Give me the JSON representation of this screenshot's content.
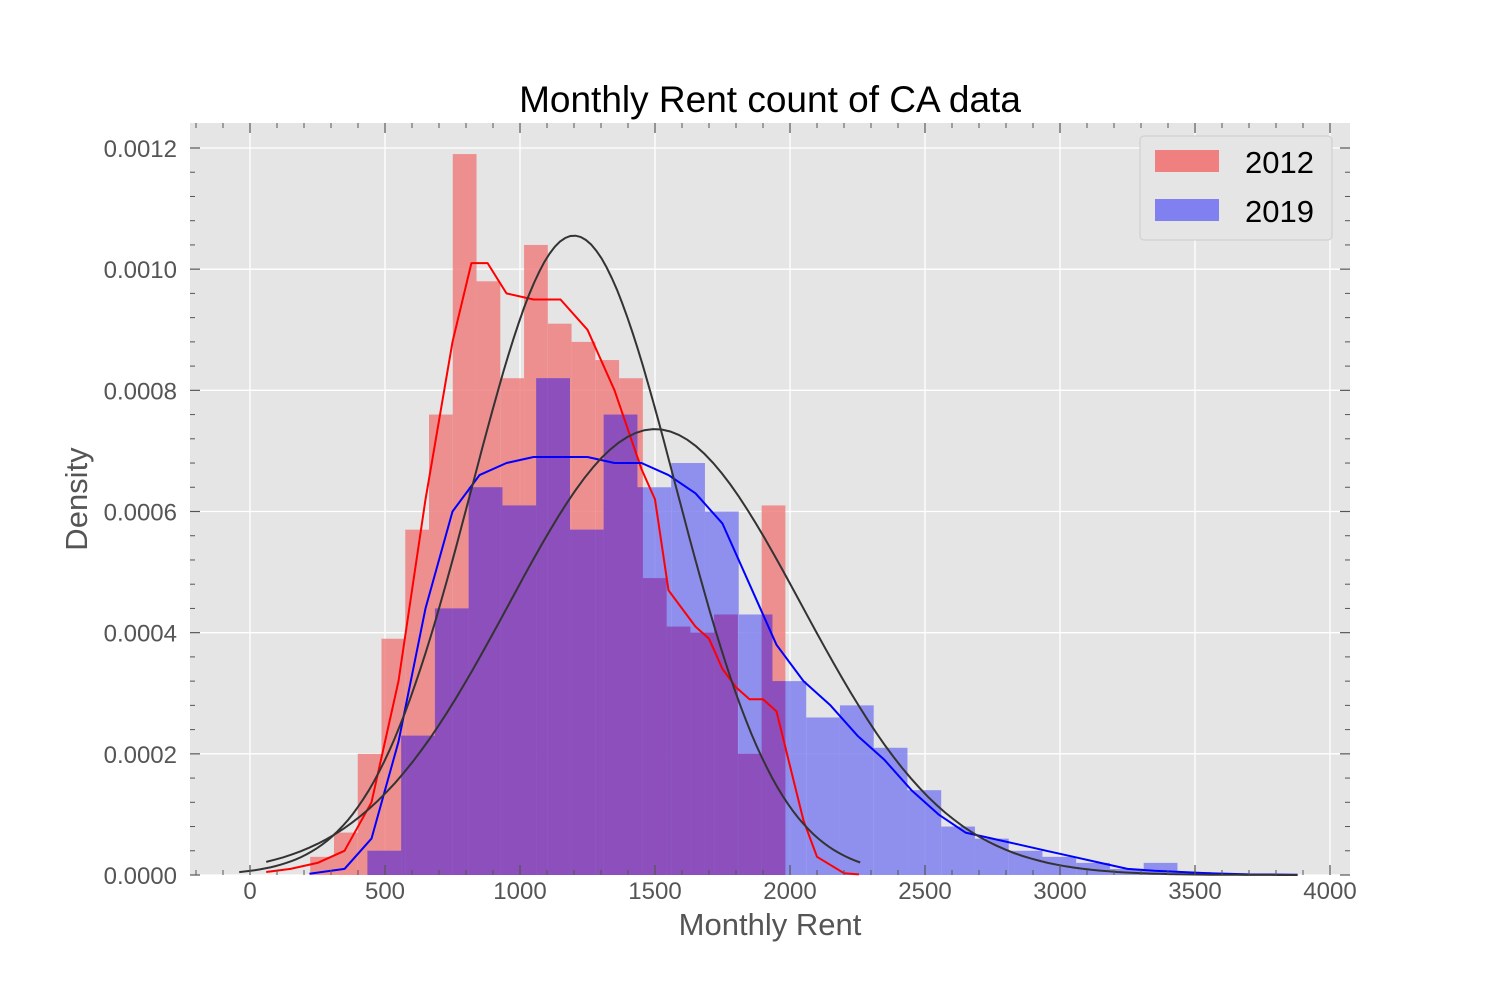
{
  "chart_data": {
    "type": "histogram",
    "title": "Monthly Rent count of CA  data",
    "xlabel": "Monthly Rent",
    "ylabel": "Density",
    "xlim": [
      -200,
      4050
    ],
    "ylim": [
      0,
      0.00124
    ],
    "xticks": [
      0,
      500,
      1000,
      1500,
      2000,
      2500,
      3000,
      3500,
      4000
    ],
    "xtick_labels": [
      "0",
      "500",
      "1000",
      "1500",
      "2000",
      "2500",
      "3000",
      "3500",
      "4000"
    ],
    "yticks": [
      0,
      0.0002,
      0.0004,
      0.0006,
      0.0008,
      0.001,
      0.0012
    ],
    "ytick_labels": [
      "0.0000",
      "0.0002",
      "0.0004",
      "0.0006",
      "0.0008",
      "0.0010",
      "0.0012"
    ],
    "grid": true,
    "legend_position": "upper right",
    "series": [
      {
        "name": "2012",
        "color": "#f08080",
        "bins": [
          [
            223,
            311,
            3e-05
          ],
          [
            311,
            399,
            7e-05
          ],
          [
            399,
            487,
            0.0002
          ],
          [
            487,
            575,
            0.00039
          ],
          [
            575,
            663,
            0.00057
          ],
          [
            663,
            751,
            0.00076
          ],
          [
            751,
            839,
            0.00119
          ],
          [
            839,
            927,
            0.00098
          ],
          [
            927,
            1015,
            0.00082
          ],
          [
            1015,
            1103,
            0.00104
          ],
          [
            1103,
            1191,
            0.00091
          ],
          [
            1191,
            1279,
            0.00088
          ],
          [
            1279,
            1367,
            0.00085
          ],
          [
            1367,
            1455,
            0.00082
          ],
          [
            1455,
            1543,
            0.00049
          ],
          [
            1543,
            1631,
            0.00041
          ],
          [
            1631,
            1719,
            0.0004
          ],
          [
            1719,
            1807,
            0.00043
          ],
          [
            1807,
            1895,
            0.0002
          ],
          [
            1895,
            1983,
            0.00061
          ]
        ],
        "kde": [
          [
            60,
            5e-06
          ],
          [
            150,
            1e-05
          ],
          [
            250,
            2e-05
          ],
          [
            350,
            4e-05
          ],
          [
            450,
            0.00012
          ],
          [
            550,
            0.00032
          ],
          [
            650,
            0.00062
          ],
          [
            750,
            0.00088
          ],
          [
            820,
            0.00101
          ],
          [
            880,
            0.00101
          ],
          [
            950,
            0.00096
          ],
          [
            1050,
            0.00095
          ],
          [
            1150,
            0.00095
          ],
          [
            1250,
            0.0009
          ],
          [
            1350,
            0.0008
          ],
          [
            1450,
            0.00067
          ],
          [
            1500,
            0.00062
          ],
          [
            1550,
            0.00047
          ],
          [
            1650,
            0.00041
          ],
          [
            1700,
            0.00039
          ],
          [
            1750,
            0.00034
          ],
          [
            1800,
            0.00031
          ],
          [
            1850,
            0.00029
          ],
          [
            1900,
            0.00029
          ],
          [
            1950,
            0.00027
          ],
          [
            2000,
            0.00018
          ],
          [
            2050,
            9e-05
          ],
          [
            2100,
            3e-05
          ],
          [
            2200,
            3e-06
          ],
          [
            2255,
            1e-06
          ]
        ]
      },
      {
        "name": "2019",
        "color": "#8080f0",
        "bins": [
          [
            435,
            560,
            4e-05
          ],
          [
            560,
            685,
            0.00023
          ],
          [
            685,
            810,
            0.00044
          ],
          [
            810,
            935,
            0.00064
          ],
          [
            935,
            1060,
            0.00061
          ],
          [
            1060,
            1185,
            0.00082
          ],
          [
            1185,
            1310,
            0.00057
          ],
          [
            1310,
            1435,
            0.00076
          ],
          [
            1435,
            1560,
            0.00064
          ],
          [
            1560,
            1685,
            0.00068
          ],
          [
            1685,
            1810,
            0.0006
          ],
          [
            1810,
            1935,
            0.00043
          ],
          [
            1935,
            2060,
            0.00032
          ],
          [
            2060,
            2185,
            0.00026
          ],
          [
            2185,
            2310,
            0.00028
          ],
          [
            2310,
            2435,
            0.00021
          ],
          [
            2435,
            2560,
            0.00014
          ],
          [
            2560,
            2685,
            8e-05
          ],
          [
            2685,
            2810,
            6e-05
          ],
          [
            2810,
            2935,
            4e-05
          ],
          [
            2935,
            3060,
            3e-05
          ],
          [
            3060,
            3185,
            2e-05
          ],
          [
            3185,
            3310,
            1e-05
          ],
          [
            3310,
            3435,
            2e-05
          ],
          [
            3435,
            3560,
            5e-06
          ]
        ],
        "kde": [
          [
            220,
            2e-06
          ],
          [
            350,
            1e-05
          ],
          [
            450,
            6e-05
          ],
          [
            550,
            0.00022
          ],
          [
            650,
            0.00044
          ],
          [
            750,
            0.0006
          ],
          [
            850,
            0.00066
          ],
          [
            950,
            0.00068
          ],
          [
            1050,
            0.00069
          ],
          [
            1150,
            0.00069
          ],
          [
            1250,
            0.00069
          ],
          [
            1350,
            0.00068
          ],
          [
            1450,
            0.00068
          ],
          [
            1550,
            0.00066
          ],
          [
            1650,
            0.00063
          ],
          [
            1750,
            0.00058
          ],
          [
            1850,
            0.00048
          ],
          [
            1950,
            0.00038
          ],
          [
            2050,
            0.00032
          ],
          [
            2150,
            0.00028
          ],
          [
            2250,
            0.00023
          ],
          [
            2350,
            0.00019
          ],
          [
            2450,
            0.00014
          ],
          [
            2550,
            0.0001
          ],
          [
            2650,
            7e-05
          ],
          [
            2750,
            6e-05
          ],
          [
            2850,
            5e-05
          ],
          [
            2950,
            4e-05
          ],
          [
            3050,
            3e-05
          ],
          [
            3150,
            2e-05
          ],
          [
            3250,
            1e-05
          ],
          [
            3350,
            7e-06
          ],
          [
            3450,
            5e-06
          ],
          [
            3550,
            3e-06
          ],
          [
            3700,
            1e-06
          ],
          [
            3880,
            5e-07
          ]
        ]
      }
    ],
    "normal_fits": [
      {
        "mean": 1200,
        "std": 378,
        "xrange": [
          -40,
          2260
        ],
        "color": "#333333"
      },
      {
        "mean": 1500,
        "std": 542,
        "xrange": [
          60,
          3880
        ],
        "color": "#333333"
      }
    ]
  }
}
